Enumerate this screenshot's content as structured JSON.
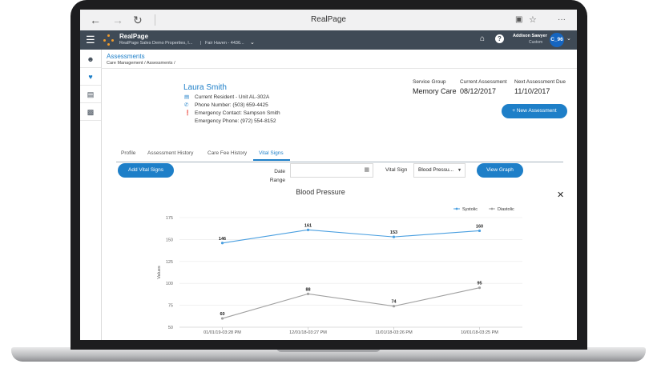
{
  "browser": {
    "title": "RealPage",
    "back_icon": "back-arrow-icon",
    "forward_icon": "forward-arrow-icon",
    "reload_icon": "reload-icon"
  },
  "header": {
    "app_name": "RealPage",
    "company": "RealPage Sales Demo Properties, I...",
    "property": "Fair Haven - 4436...",
    "user_name": "Addison Sawyer",
    "user_role": "Custom",
    "avatar_initials": "C_96",
    "brand_color": "#3f4a56",
    "accent_color": "#1e7fc8"
  },
  "breadcrumb": {
    "title": "Assessments",
    "path": "Care Management / Assessments /"
  },
  "resident": {
    "name": "Laura Smith",
    "status": "Current Resident - Unit AL-302A",
    "phone": "Phone Number: (503) 659-4425",
    "emergency_contact": "Emergency Contact: Sampson Smith",
    "emergency_phone": "Emergency Phone: (972) 554-8152"
  },
  "assessment_meta": {
    "service_group_label": "Service Group",
    "service_group_value": "Memory Care",
    "current_label": "Current Assessment",
    "current_value": "08/12/2017",
    "next_label": "Next Assessment Due",
    "next_value": "11/10/2017",
    "new_button": "+ New Assessment"
  },
  "tabs": [
    "Profile",
    "Assessment History",
    "Care Fee History",
    "Vital Signs"
  ],
  "filters": {
    "add_button": "Add Vital Signs",
    "date_label_line1": "Date",
    "date_label_line2": "Range",
    "date_value": "",
    "vital_label": "Vital Sign",
    "vital_value": "Blood Pressu...",
    "view_button": "View Graph"
  },
  "chart_data": {
    "type": "line",
    "title": "Blood Pressure",
    "ylabel": "Values",
    "xlabel": "",
    "categories": [
      "01/01/19-03:28 PM",
      "12/01/18-03:27 PM",
      "11/01/18-03:26 PM",
      "10/01/18-03:25 PM"
    ],
    "ylim": [
      50,
      175
    ],
    "yticks": [
      50,
      75,
      100,
      125,
      150,
      175
    ],
    "grid": true,
    "legend": "top-right",
    "series": [
      {
        "name": "Systolic",
        "values": [
          146,
          161,
          153,
          160
        ],
        "color": "#4a9fe0"
      },
      {
        "name": "Diastolic",
        "values": [
          60,
          88,
          74,
          95
        ],
        "color": "#a0a0a0"
      }
    ]
  }
}
